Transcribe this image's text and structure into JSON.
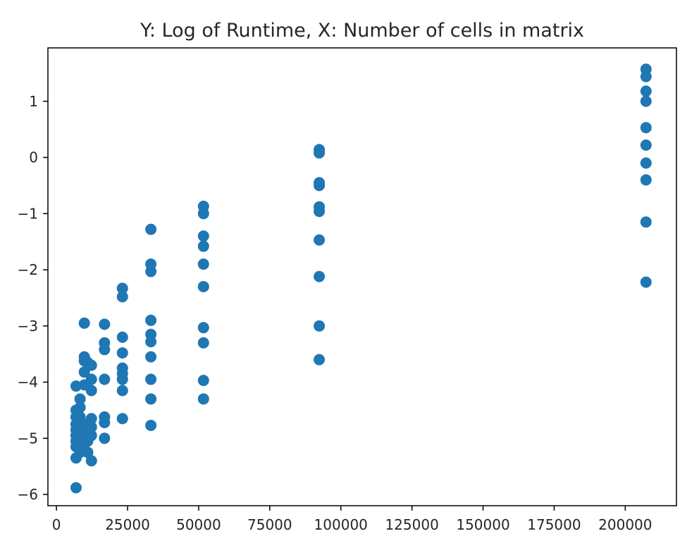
{
  "chart_data": {
    "type": "scatter",
    "title": "Y: Log of Runtime, X: Number of cells in matrix",
    "xlabel": "",
    "ylabel": "",
    "xlim": [
      -3000,
      218000
    ],
    "ylim": [
      -6.2,
      1.95
    ],
    "xticks": [
      0,
      25000,
      50000,
      75000,
      100000,
      125000,
      150000,
      175000,
      200000
    ],
    "xtick_labels": [
      "0",
      "25000",
      "50000",
      "75000",
      "100000",
      "125000",
      "150000",
      "175000",
      "200000"
    ],
    "yticks": [
      -6,
      -5,
      -4,
      -3,
      -2,
      -1,
      0,
      1
    ],
    "ytick_labels": [
      "−6",
      "−5",
      "−4",
      "−3",
      "−2",
      "−1",
      "0",
      "1"
    ],
    "grid": false,
    "legend": "none",
    "marker_color": "#1f77b4",
    "series": [
      {
        "points": [
          [
            6900,
            -5.88
          ],
          [
            6900,
            -5.35
          ],
          [
            6900,
            -5.15
          ],
          [
            6900,
            -5.05
          ],
          [
            6900,
            -4.95
          ],
          [
            6900,
            -4.85
          ],
          [
            6900,
            -4.75
          ],
          [
            6900,
            -4.62
          ],
          [
            6900,
            -4.5
          ],
          [
            6900,
            -4.07
          ],
          [
            8300,
            -5.25
          ],
          [
            8300,
            -5.1
          ],
          [
            8300,
            -4.95
          ],
          [
            8300,
            -4.8
          ],
          [
            8300,
            -4.62
          ],
          [
            8300,
            -4.45
          ],
          [
            8300,
            -4.3
          ],
          [
            9800,
            -5.2
          ],
          [
            9800,
            -5.05
          ],
          [
            9800,
            -4.9
          ],
          [
            9800,
            -4.75
          ],
          [
            9800,
            -4.05
          ],
          [
            9800,
            -3.82
          ],
          [
            9800,
            -3.62
          ],
          [
            9800,
            -3.55
          ],
          [
            9800,
            -2.95
          ],
          [
            11000,
            -5.25
          ],
          [
            11000,
            -5.05
          ],
          [
            11000,
            -4.88
          ],
          [
            11000,
            -4.78
          ],
          [
            11000,
            -3.65
          ],
          [
            12300,
            -5.4
          ],
          [
            12300,
            -4.95
          ],
          [
            12300,
            -4.8
          ],
          [
            12300,
            -4.65
          ],
          [
            12300,
            -4.15
          ],
          [
            12300,
            -3.95
          ],
          [
            12300,
            -3.7
          ],
          [
            16900,
            -5.0
          ],
          [
            16900,
            -4.72
          ],
          [
            16900,
            -4.62
          ],
          [
            16900,
            -3.95
          ],
          [
            16900,
            -3.42
          ],
          [
            16900,
            -3.3
          ],
          [
            16900,
            -2.97
          ],
          [
            23200,
            -4.65
          ],
          [
            23200,
            -4.15
          ],
          [
            23200,
            -3.95
          ],
          [
            23200,
            -3.85
          ],
          [
            23200,
            -3.75
          ],
          [
            23200,
            -3.48
          ],
          [
            23200,
            -3.2
          ],
          [
            23200,
            -2.48
          ],
          [
            23200,
            -2.33
          ],
          [
            33200,
            -4.77
          ],
          [
            33200,
            -4.3
          ],
          [
            33200,
            -3.95
          ],
          [
            33200,
            -3.55
          ],
          [
            33200,
            -3.28
          ],
          [
            33200,
            -3.15
          ],
          [
            33200,
            -2.9
          ],
          [
            33200,
            -2.03
          ],
          [
            33200,
            -1.9
          ],
          [
            33200,
            -1.28
          ],
          [
            51700,
            -4.3
          ],
          [
            51700,
            -3.97
          ],
          [
            51700,
            -3.3
          ],
          [
            51700,
            -3.03
          ],
          [
            51700,
            -2.3
          ],
          [
            51700,
            -1.9
          ],
          [
            51700,
            -1.58
          ],
          [
            51700,
            -1.4
          ],
          [
            51700,
            -1.0
          ],
          [
            51700,
            -0.87
          ],
          [
            92400,
            -3.6
          ],
          [
            92400,
            -3.0
          ],
          [
            92400,
            -2.12
          ],
          [
            92400,
            -1.47
          ],
          [
            92400,
            -0.96
          ],
          [
            92400,
            -0.88
          ],
          [
            92400,
            -0.5
          ],
          [
            92400,
            -0.45
          ],
          [
            92400,
            0.08
          ],
          [
            92400,
            0.14
          ],
          [
            207300,
            -2.22
          ],
          [
            207300,
            -1.15
          ],
          [
            207300,
            -0.4
          ],
          [
            207300,
            -0.1
          ],
          [
            207300,
            0.22
          ],
          [
            207300,
            0.53
          ],
          [
            207300,
            1.0
          ],
          [
            207300,
            1.18
          ],
          [
            207300,
            1.44
          ],
          [
            207300,
            1.57
          ]
        ]
      }
    ]
  }
}
